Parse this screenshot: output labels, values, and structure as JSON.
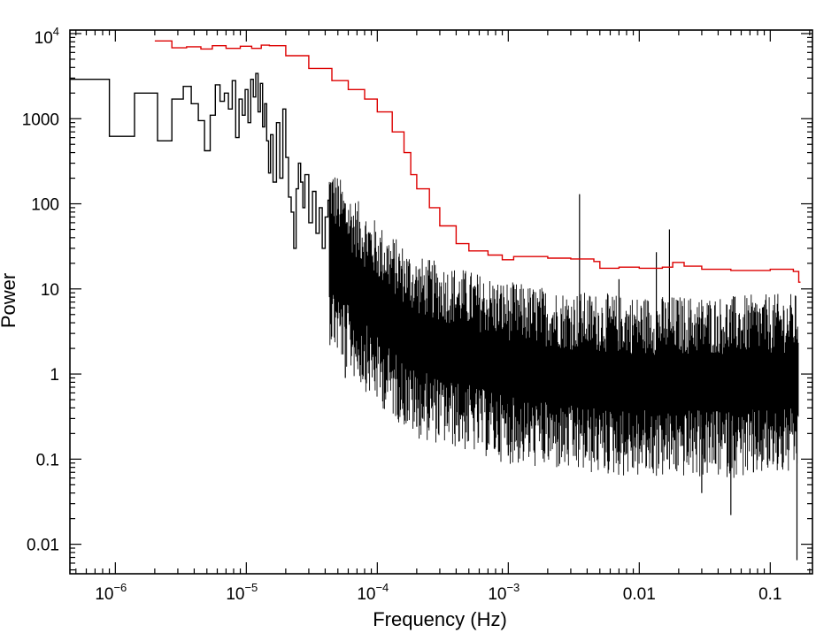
{
  "chart_data": {
    "type": "line",
    "xlabel": "Frequency (Hz)",
    "ylabel": "Power",
    "xscale": "log",
    "yscale": "log",
    "xlim": [
      4.5e-07,
      0.21
    ],
    "ylim": [
      0.0045,
      11000
    ],
    "grid": false,
    "x_ticks": [
      {
        "value": 1e-06,
        "base": "10",
        "exp": "−6"
      },
      {
        "value": 1e-05,
        "base": "10",
        "exp": "−5"
      },
      {
        "value": 0.0001,
        "base": "10",
        "exp": "−4"
      },
      {
        "value": 0.001,
        "base": "10",
        "exp": "−3"
      },
      {
        "value": 0.01,
        "label": "0.01"
      },
      {
        "value": 0.1,
        "label": "0.1"
      }
    ],
    "y_ticks": [
      {
        "value": 0.01,
        "label": "0.01"
      },
      {
        "value": 0.1,
        "label": "0.1"
      },
      {
        "value": 1,
        "label": "1"
      },
      {
        "value": 10,
        "label": "10"
      },
      {
        "value": 100,
        "label": "100"
      },
      {
        "value": 1000,
        "label": "1000"
      },
      {
        "value": 10000,
        "base": "10",
        "exp": "4"
      }
    ],
    "series": [
      {
        "color": "#000000",
        "style": "step",
        "points": [
          [
            4.5e-07,
            2900
          ],
          [
            9e-07,
            620
          ],
          [
            1.4e-06,
            2000
          ],
          [
            2.1e-06,
            550
          ],
          [
            2.7e-06,
            1700
          ],
          [
            3.3e-06,
            2400
          ],
          [
            3.8e-06,
            1500
          ],
          [
            4.3e-06,
            950
          ],
          [
            4.8e-06,
            420
          ],
          [
            5.3e-06,
            1100
          ],
          [
            5.8e-06,
            2500
          ],
          [
            6.3e-06,
            1600
          ],
          [
            6.8e-06,
            2000
          ],
          [
            7.3e-06,
            1300
          ],
          [
            7.8e-06,
            2800
          ],
          [
            8.3e-06,
            600
          ],
          [
            8.8e-06,
            1700
          ],
          [
            9.3e-06,
            1100
          ],
          [
            9.8e-06,
            2200
          ],
          [
            1.03e-05,
            900
          ],
          [
            1.08e-05,
            2900
          ],
          [
            1.13e-05,
            1800
          ],
          [
            1.18e-05,
            3400
          ],
          [
            1.23e-05,
            1200
          ],
          [
            1.28e-05,
            2600
          ],
          [
            1.33e-05,
            800
          ],
          [
            1.38e-05,
            1500
          ],
          [
            1.43e-05,
            550
          ],
          [
            1.48e-05,
            230
          ],
          [
            1.53e-05,
            650
          ],
          [
            1.6e-05,
            180
          ],
          [
            1.7e-05,
            900
          ],
          [
            1.8e-05,
            200
          ],
          [
            1.9e-05,
            1300
          ],
          [
            2e-05,
            350
          ],
          [
            2.1e-05,
            120
          ],
          [
            2.2e-05,
            80
          ],
          [
            2.3e-05,
            30
          ],
          [
            2.4e-05,
            150
          ],
          [
            2.5e-05,
            300
          ],
          [
            2.6e-05,
            180
          ],
          [
            2.7e-05,
            90
          ],
          [
            2.8e-05,
            220
          ],
          [
            3e-05,
            60
          ],
          [
            3.2e-05,
            140
          ],
          [
            3.4e-05,
            45
          ],
          [
            3.6e-05,
            90
          ],
          [
            3.8e-05,
            30
          ],
          [
            4e-05,
            70
          ],
          [
            4.2e-05,
            110
          ]
        ]
      },
      {
        "color": "#000000",
        "style": "noise",
        "trend": [
          [
            4.3e-05,
            28
          ],
          [
            6e-05,
            13
          ],
          [
            0.0001,
            5.5
          ],
          [
            0.0002,
            2.2
          ],
          [
            0.0005,
            1.5
          ],
          [
            0.001,
            1.1
          ],
          [
            0.003,
            0.85
          ],
          [
            0.01,
            0.75
          ],
          [
            0.05,
            0.75
          ],
          [
            0.165,
            0.8
          ]
        ],
        "spikes": [
          [
            5.7e-05,
            0.9
          ],
          [
            0.0002,
            0.24
          ],
          [
            0.001,
            0.11
          ],
          [
            0.0035,
            130
          ],
          [
            0.0039,
            0.11
          ],
          [
            0.007,
            13
          ],
          [
            0.0135,
            27
          ],
          [
            0.017,
            50
          ],
          [
            0.03,
            0.04
          ],
          [
            0.05,
            0.022
          ],
          [
            0.0745,
            0.07
          ],
          [
            0.16,
            0.0065
          ]
        ]
      },
      {
        "color": "#dd0000",
        "style": "step",
        "points": [
          [
            2e-06,
            8200
          ],
          [
            2.7e-06,
            6800
          ],
          [
            3.5e-06,
            7000
          ],
          [
            4.5e-06,
            6600
          ],
          [
            5.5e-06,
            7200
          ],
          [
            7e-06,
            6700
          ],
          [
            9e-06,
            7100
          ],
          [
            1.1e-05,
            6700
          ],
          [
            1.3e-05,
            7300
          ],
          [
            1.5e-05,
            7200
          ],
          [
            2e-05,
            5500
          ],
          [
            3e-05,
            3900
          ],
          [
            4.5e-05,
            2800
          ],
          [
            6e-05,
            2200
          ],
          [
            8e-05,
            1700
          ],
          [
            0.0001,
            1200
          ],
          [
            0.00013,
            700
          ],
          [
            0.00016,
            400
          ],
          [
            0.00018,
            220
          ],
          [
            0.0002,
            150
          ],
          [
            0.00025,
            90
          ],
          [
            0.0003,
            55
          ],
          [
            0.0004,
            34
          ],
          [
            0.0005,
            28
          ],
          [
            0.0007,
            25
          ],
          [
            0.0009,
            22
          ],
          [
            0.0011,
            24
          ],
          [
            0.002,
            23
          ],
          [
            0.003,
            22.5
          ],
          [
            0.0045,
            21
          ],
          [
            0.005,
            17.5
          ],
          [
            0.007,
            18
          ],
          [
            0.01,
            17.5
          ],
          [
            0.015,
            18
          ],
          [
            0.018,
            20.5
          ],
          [
            0.022,
            18.5
          ],
          [
            0.03,
            17
          ],
          [
            0.05,
            16.5
          ],
          [
            0.1,
            17
          ],
          [
            0.15,
            16
          ],
          [
            0.165,
            12
          ]
        ]
      }
    ]
  }
}
